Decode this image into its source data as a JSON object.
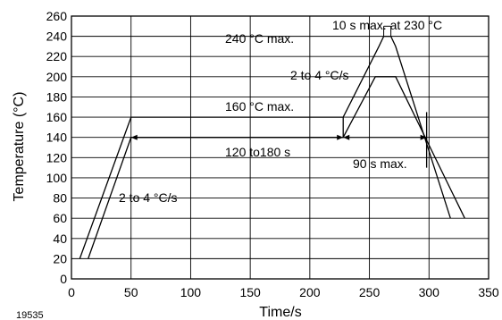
{
  "chart_data": {
    "type": "line",
    "title": "",
    "xlabel": "Time/s",
    "ylabel": "Temperature (°C)",
    "xlim": [
      0,
      350
    ],
    "ylim": [
      0,
      260
    ],
    "x_ticks": [
      0,
      50,
      100,
      150,
      200,
      250,
      300,
      350
    ],
    "y_ticks": [
      0,
      20,
      40,
      60,
      80,
      100,
      120,
      140,
      160,
      180,
      200,
      220,
      240,
      260
    ],
    "grid": true,
    "figure_id": "19535",
    "series": [
      {
        "points": [
          [
            7,
            20
          ],
          [
            50,
            160
          ],
          [
            228,
            160
          ],
          [
            258,
            230
          ],
          [
            262,
            240
          ],
          [
            268,
            240
          ],
          [
            272,
            230
          ],
          [
            318,
            60
          ]
        ]
      },
      {
        "points": [
          [
            14,
            20
          ],
          [
            50,
            140
          ],
          [
            228,
            140
          ],
          [
            255,
            200
          ],
          [
            272,
            200
          ],
          [
            330,
            60
          ]
        ]
      }
    ],
    "annotations": {
      "ramp_up_rate": "2 to 4 °C/s",
      "preheat_duration": "120 to180 s",
      "preheat_max": "160 °C max.",
      "peak_max": "240 °C max.",
      "time_at_peak": "10 s max. at 230 °C",
      "ramp_to_peak_rate": "2 to 4 °C/s",
      "time_above": "90 s max."
    }
  }
}
